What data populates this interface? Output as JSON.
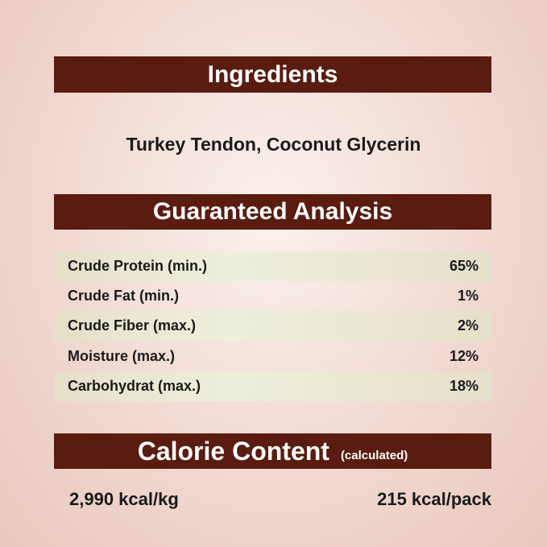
{
  "ingredients": {
    "title": "Ingredients",
    "text": "Turkey Tendon, Coconut Glycerin"
  },
  "analysis": {
    "title": "Guaranteed Analysis",
    "rows": [
      {
        "label": "Crude Protein (min.)",
        "value": "65%"
      },
      {
        "label": "Crude Fat (min.)",
        "value": "1%"
      },
      {
        "label": "Crude Fiber (max.)",
        "value": "2%"
      },
      {
        "label": "Moisture (max.)",
        "value": "12%"
      },
      {
        "label": "Carbohydrat (max.)",
        "value": "18%"
      }
    ]
  },
  "calorie": {
    "title": "Calorie Content",
    "note": "(calculated)",
    "per_kg": "2,990 kcal/kg",
    "per_pack": "215 kcal/pack"
  },
  "colors": {
    "header_bar": "#5a1c10",
    "row_stripe": "#e9e6d2"
  }
}
